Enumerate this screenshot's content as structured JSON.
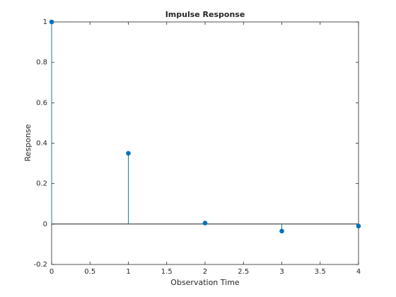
{
  "chart_data": {
    "type": "stem",
    "title": "Impulse Response",
    "xlabel": "Observation Time",
    "ylabel": "Response",
    "x": [
      0,
      1,
      2,
      3,
      4
    ],
    "values": [
      1,
      0.35,
      0.005,
      -0.035,
      -0.01
    ],
    "color": "#0072bd",
    "stem_color": "#1a7f8a",
    "xlim": [
      0,
      4
    ],
    "ylim": [
      -0.2,
      1
    ],
    "xticks": [
      0,
      0.5,
      1,
      1.5,
      2,
      2.5,
      3,
      3.5,
      4
    ],
    "yticks": [
      -0.2,
      0,
      0.2,
      0.4,
      0.6,
      0.8,
      1
    ],
    "baseline": 0
  }
}
